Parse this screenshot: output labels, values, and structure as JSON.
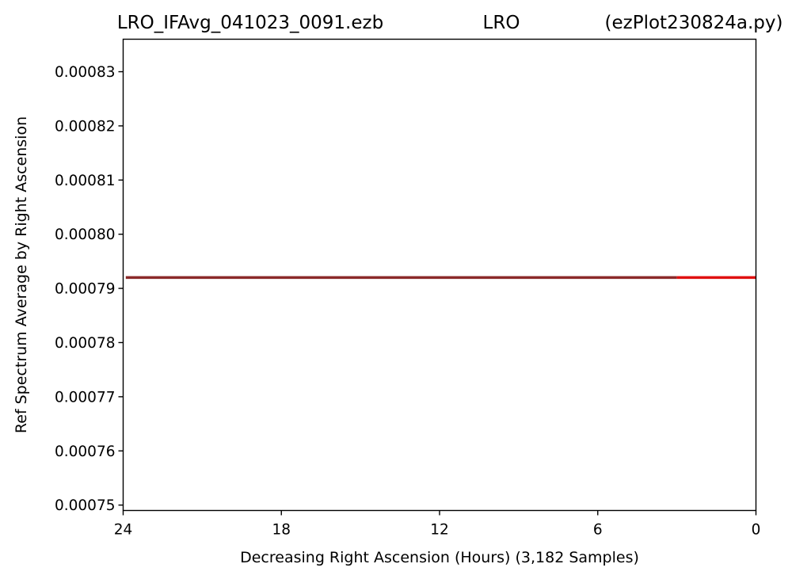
{
  "header": {
    "filename": "LRO_IFAvg_041023_0091.ezb",
    "station": "LRO",
    "script": "(ezPlot230824a.py)"
  },
  "chart_data": {
    "type": "line",
    "xlabel": "Decreasing Right Ascension (Hours) (3,182 Samples)",
    "ylabel": "Ref Spectrum Average by Right Ascension",
    "xlim": [
      24,
      0
    ],
    "ylim": [
      0.000749,
      0.000836
    ],
    "x_ticks": [
      {
        "value": 24,
        "label": "24"
      },
      {
        "value": 18,
        "label": "18"
      },
      {
        "value": 12,
        "label": "12"
      },
      {
        "value": 6,
        "label": "6"
      },
      {
        "value": 0,
        "label": "0"
      }
    ],
    "y_ticks": [
      {
        "value": 0.00075,
        "label": "0.00075"
      },
      {
        "value": 0.00076,
        "label": "0.00076"
      },
      {
        "value": 0.00077,
        "label": "0.00077"
      },
      {
        "value": 0.00078,
        "label": "0.00078"
      },
      {
        "value": 0.00079,
        "label": "0.00079"
      },
      {
        "value": 0.0008,
        "label": "0.00080"
      },
      {
        "value": 0.00081,
        "label": "0.00081"
      },
      {
        "value": 0.00082,
        "label": "0.00082"
      },
      {
        "value": 0.00083,
        "label": "0.00083"
      }
    ],
    "series": [
      {
        "color": "#8b2a2a",
        "x": [
          23.9,
          20,
          16,
          12,
          8,
          3.0
        ],
        "y": [
          0.000792,
          0.000792,
          0.000792,
          0.000792,
          0.000792,
          0.000792
        ]
      },
      {
        "color": "#e01010",
        "x": [
          3.0,
          2,
          1,
          0
        ],
        "y": [
          0.000792,
          0.000792,
          0.000792,
          0.000792
        ]
      }
    ],
    "grid": false
  }
}
